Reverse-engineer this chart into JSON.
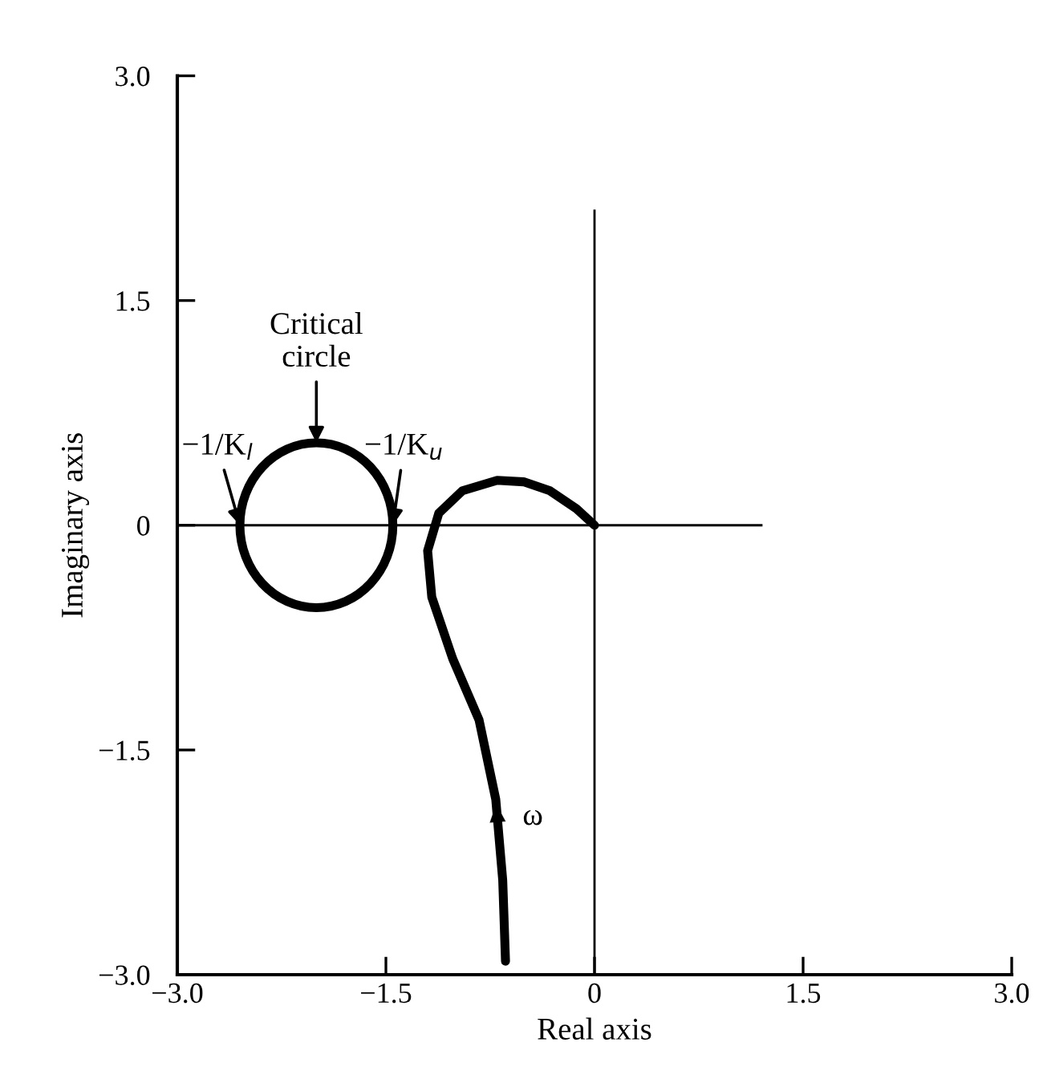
{
  "chart_data": {
    "type": "line",
    "xlabel": "Real axis",
    "ylabel": "Imaginary axis",
    "series": [
      {
        "color": "#000000",
        "x": [
          -0.64,
          -0.66,
          -0.71,
          -0.83,
          -1.02,
          -1.17,
          -1.2,
          -1.12,
          -0.95,
          -0.7,
          -0.51,
          -0.32,
          -0.13,
          0
        ],
        "values": [
          -2.91,
          -2.37,
          -1.83,
          -1.3,
          -0.89,
          -0.48,
          -0.17,
          0.08,
          0.23,
          0.3,
          0.29,
          0.23,
          0.11,
          0
        ]
      }
    ],
    "xlim": [
      -3,
      3
    ],
    "ylim": [
      -3,
      3
    ],
    "xticks": [
      {
        "value": -3,
        "label": "−3.0"
      },
      {
        "value": -1.5,
        "label": "−1.5"
      },
      0,
      {
        "value": 1.5,
        "label": "1.5"
      },
      {
        "value": 3,
        "label": "3.0"
      }
    ],
    "yticks": [
      {
        "value": -3,
        "label": "−3.0"
      },
      {
        "value": -1.5,
        "label": "−1.5"
      },
      0,
      {
        "value": 1.5,
        "label": "1.5"
      },
      {
        "value": 3,
        "label": "3.0"
      }
    ],
    "ref_lines": [
      {
        "axis": "y",
        "value": 0,
        "color": "#000000"
      },
      {
        "axis": "x",
        "value": 0,
        "color": "#000000"
      }
    ],
    "annotations": [
      "Critical\ncircle",
      {
        "text": "−1/K$_{l}$",
        "x": -2.55,
        "y": 0
      },
      {
        "text": "−1/K$_{u}$",
        "x": -1.45,
        "y": 0
      },
      {
        "text": "ω",
        "x": -0.7,
        "y": -1.83
      }
    ],
    "grid": false,
    "legend": false,
    "marker": "none",
    "line_style": "solid"
  }
}
